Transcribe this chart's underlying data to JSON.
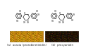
{
  "background_color": "#ffffff",
  "label_a": "(a)  acacia (prorobinetinidin)",
  "label_b": "(b)  procyanidin",
  "label_fontsize": 2.8,
  "struct_line_color": "#111111",
  "text_fontsize": 1.9,
  "photo_a_colors": [
    "#c8920a",
    "#b07c08",
    "#d4a020",
    "#9a6c06",
    "#c08010"
  ],
  "photo_b_colors": [
    "#2a1a06",
    "#1a1004",
    "#3a2008",
    "#221408",
    "#180e04"
  ],
  "lw": 0.45
}
